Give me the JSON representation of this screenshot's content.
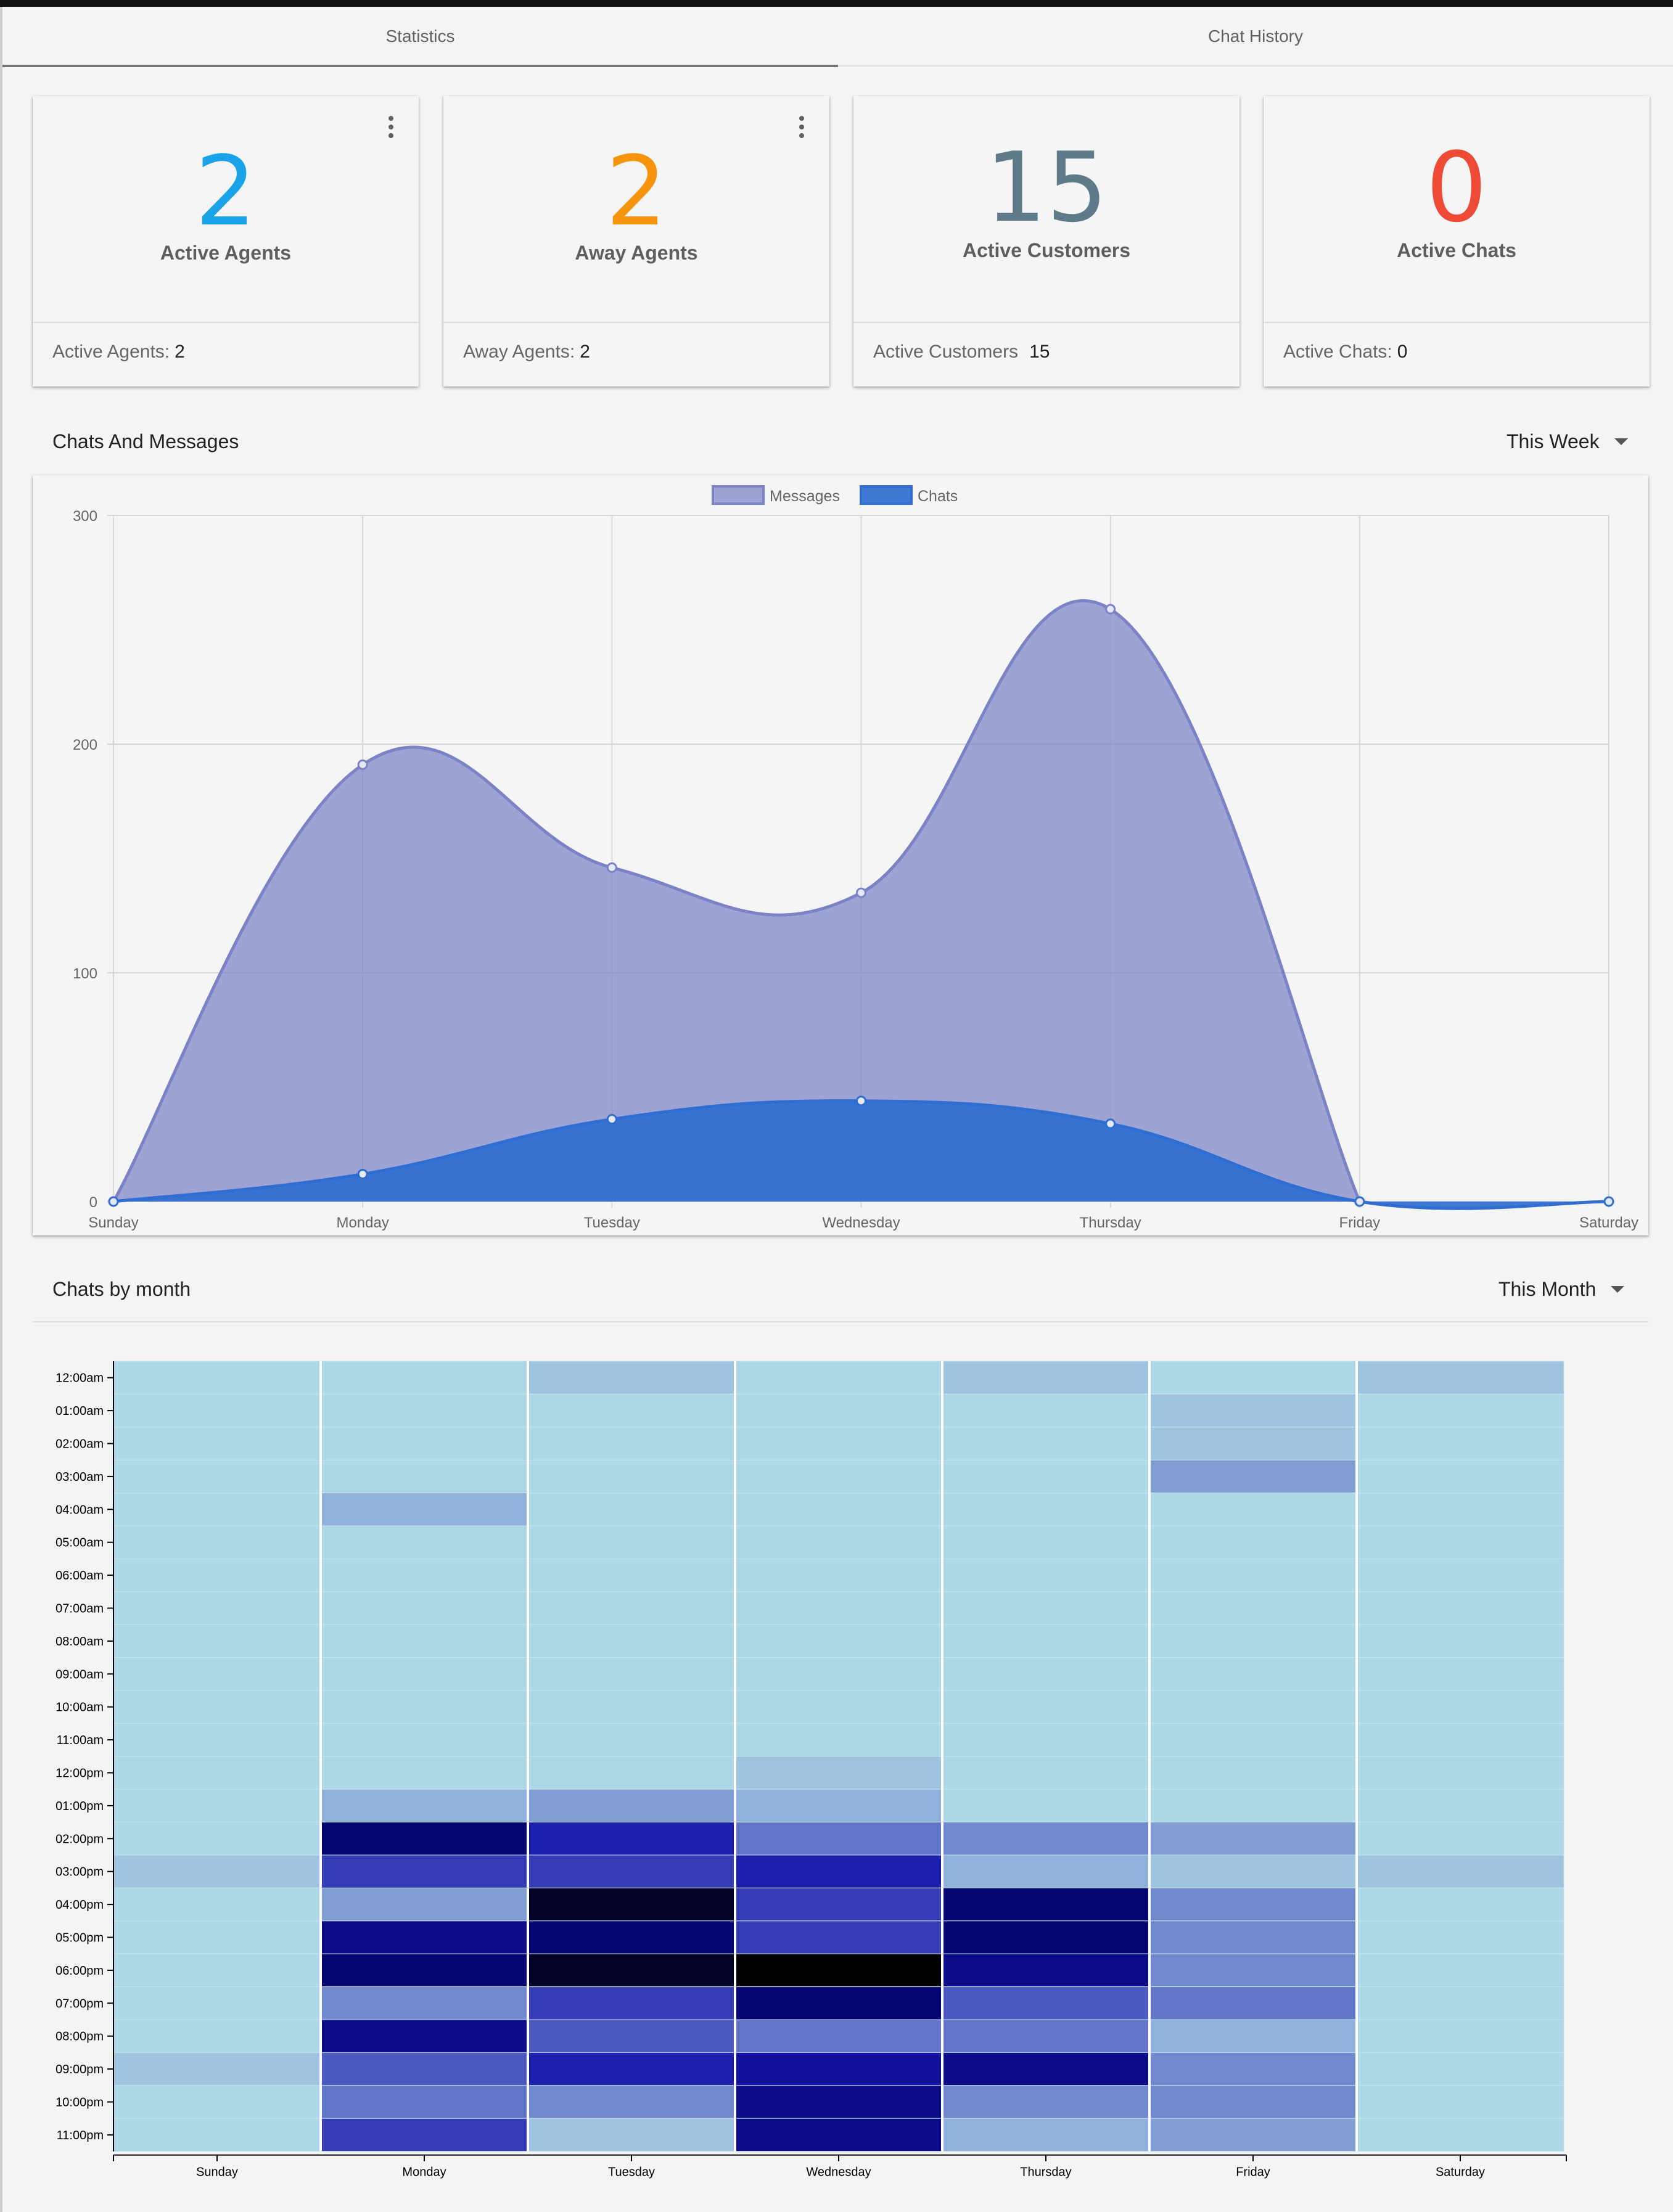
{
  "tabs": [
    {
      "label": "Statistics",
      "active": true
    },
    {
      "label": "Chat History",
      "active": false
    }
  ],
  "cards": [
    {
      "value": "2",
      "label": "Active Agents",
      "footer_label": "Active Agents:",
      "footer_value": "2",
      "color": "#1aa3e8",
      "has_menu": true
    },
    {
      "value": "2",
      "label": "Away Agents",
      "footer_label": "Away Agents:",
      "footer_value": "2",
      "color": "#f7940d",
      "has_menu": true
    },
    {
      "value": "15",
      "label": "Active Customers",
      "footer_label": "Active Customers",
      "footer_value": "15",
      "color": "#5f7b8a",
      "has_menu": false
    },
    {
      "value": "0",
      "label": "Active Chats",
      "footer_label": "Active Chats:",
      "footer_value": "0",
      "color": "#ef4a36",
      "has_menu": false
    }
  ],
  "sections": {
    "messages": {
      "title": "Chats And Messages",
      "range": "This Week"
    },
    "monthly": {
      "title": "Chats by month",
      "range": "This Month"
    }
  },
  "chart_data": [
    {
      "type": "area",
      "x": [
        "Sunday",
        "Monday",
        "Tuesday",
        "Wednesday",
        "Thursday",
        "Friday",
        "Saturday"
      ],
      "ylim": [
        0,
        300
      ],
      "yticks": [
        0,
        100,
        200,
        300
      ],
      "grid": true,
      "legend": "top-center",
      "series": [
        {
          "name": "Messages",
          "values": [
            0,
            191,
            146,
            135,
            259,
            0,
            null
          ],
          "color": "#7b83c6"
        },
        {
          "name": "Chats",
          "values": [
            0,
            12,
            36,
            44,
            34,
            0,
            0
          ],
          "color": "#2f6ed0"
        }
      ]
    },
    {
      "type": "heatmap",
      "x": [
        "Sunday",
        "Monday",
        "Tuesday",
        "Wednesday",
        "Thursday",
        "Friday",
        "Saturday"
      ],
      "y": [
        "12:00am",
        "01:00am",
        "02:00am",
        "03:00am",
        "04:00am",
        "05:00am",
        "06:00am",
        "07:00am",
        "08:00am",
        "09:00am",
        "10:00am",
        "11:00am",
        "12:00pm",
        "01:00pm",
        "02:00pm",
        "03:00pm",
        "04:00pm",
        "05:00pm",
        "06:00pm",
        "07:00pm",
        "08:00pm",
        "09:00pm",
        "10:00pm",
        "11:00pm"
      ],
      "color_scale": [
        "#add8e6",
        "#000000"
      ],
      "values": [
        [
          0,
          0,
          1,
          0,
          1,
          0,
          1
        ],
        [
          0,
          0,
          0,
          0,
          0,
          1,
          0
        ],
        [
          0,
          0,
          0,
          0,
          0,
          1,
          0
        ],
        [
          0,
          0,
          0,
          0,
          0,
          3,
          0
        ],
        [
          0,
          2,
          0,
          0,
          0,
          0,
          0
        ],
        [
          0,
          0,
          0,
          0,
          0,
          0,
          0
        ],
        [
          0,
          0,
          0,
          0,
          0,
          0,
          0
        ],
        [
          0,
          0,
          0,
          0,
          0,
          0,
          0
        ],
        [
          0,
          0,
          0,
          0,
          0,
          0,
          0
        ],
        [
          0,
          0,
          0,
          0,
          0,
          0,
          0
        ],
        [
          0,
          0,
          0,
          0,
          0,
          0,
          0
        ],
        [
          0,
          0,
          0,
          0,
          0,
          0,
          0
        ],
        [
          0,
          0,
          0,
          1,
          0,
          0,
          0
        ],
        [
          0,
          2,
          3,
          2,
          0,
          0,
          0
        ],
        [
          0,
          11,
          8,
          5,
          4,
          3,
          0
        ],
        [
          1,
          7,
          7,
          8,
          2,
          1,
          1
        ],
        [
          0,
          3,
          13,
          7,
          11,
          4,
          0
        ],
        [
          0,
          10,
          11,
          7,
          11,
          4,
          0
        ],
        [
          0,
          11,
          13,
          14,
          10,
          4,
          0
        ],
        [
          0,
          4,
          7,
          11,
          6,
          5,
          0
        ],
        [
          0,
          10,
          6,
          5,
          5,
          2,
          0
        ],
        [
          1,
          6,
          8,
          9,
          10,
          4,
          0
        ],
        [
          0,
          5,
          4,
          10,
          4,
          4,
          0
        ],
        [
          0,
          7,
          1,
          10,
          2,
          3,
          0
        ]
      ]
    }
  ]
}
